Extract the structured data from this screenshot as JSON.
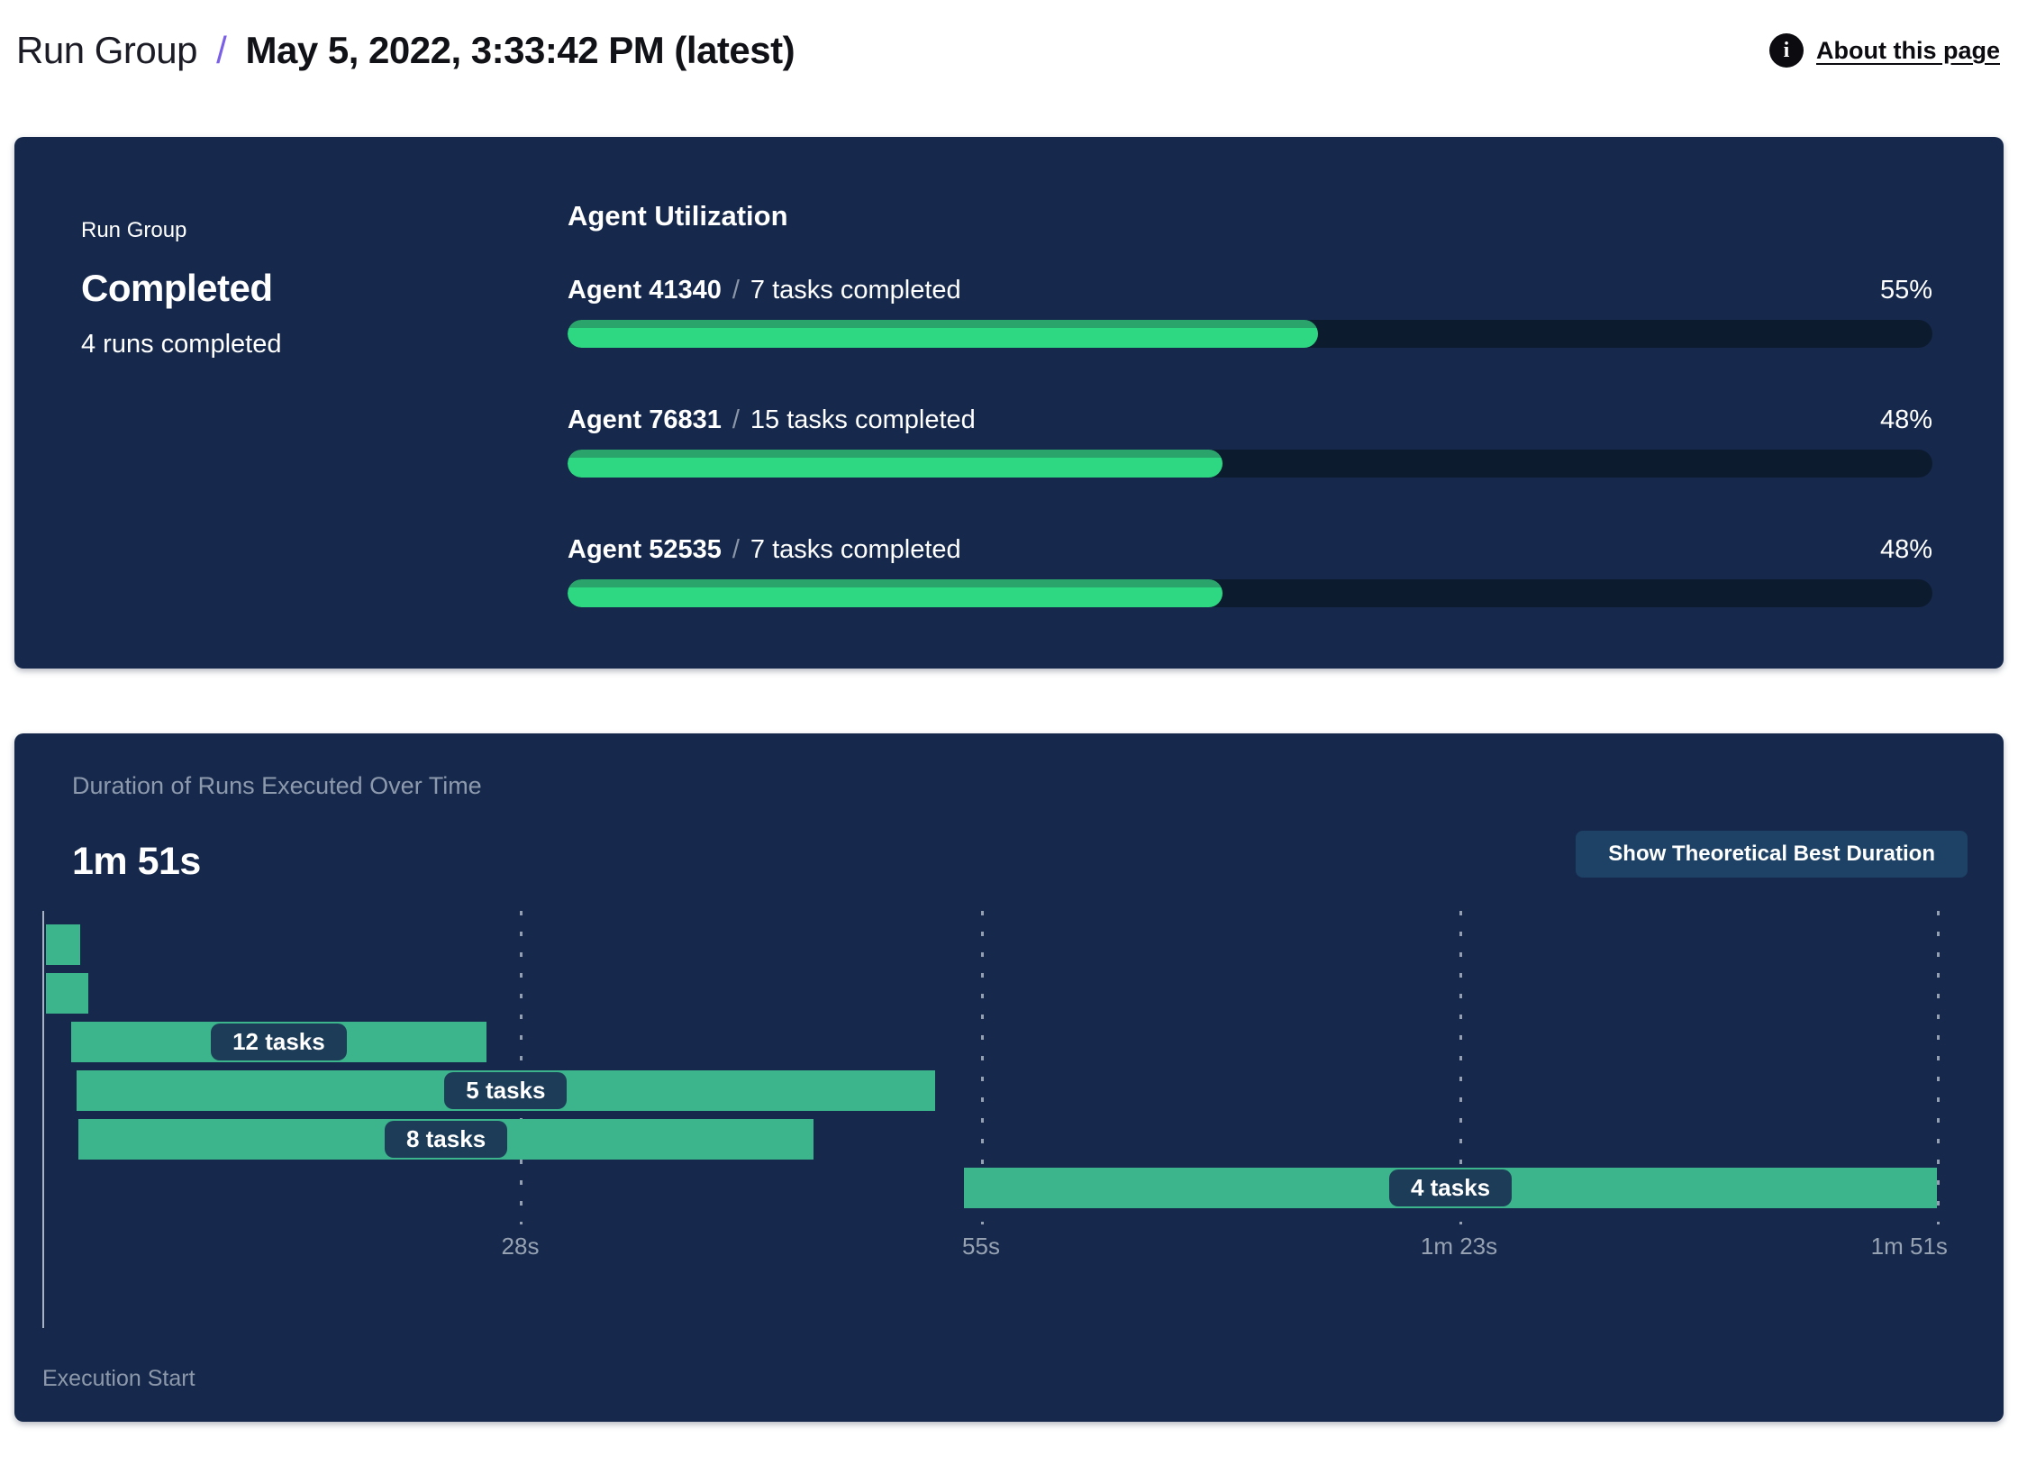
{
  "header": {
    "breadcrumb": "Run Group",
    "separator": "/",
    "title": "May 5, 2022, 3:33:42 PM (latest)",
    "info_glyph": "i",
    "about_label": "About this page"
  },
  "summary": {
    "label": "Run Group",
    "status": "Completed",
    "runs": "4 runs completed",
    "utilization_title": "Agent Utilization",
    "slash": "/",
    "agents": [
      {
        "name": "Agent 41340",
        "tasks": "7 tasks completed",
        "percent": "55%",
        "value": 55
      },
      {
        "name": "Agent 76831",
        "tasks": "15 tasks completed",
        "percent": "48%",
        "value": 48
      },
      {
        "name": "Agent 52535",
        "tasks": "7 tasks completed",
        "percent": "48%",
        "value": 48
      }
    ]
  },
  "duration_panel": {
    "title": "Duration of Runs Executed Over Time",
    "total_duration": "1m 51s",
    "button_label": "Show Theoretical Best Duration",
    "execution_start_label": "Execution Start"
  },
  "chart_data": {
    "type": "bar",
    "variant": "gantt",
    "title": "Duration of Runs Executed Over Time",
    "total_duration_label": "1m 51s",
    "xlabel": "Execution Start",
    "xlim_seconds": [
      0,
      111
    ],
    "grid": "dashed-vertical",
    "ticks": [
      {
        "label": "28s",
        "seconds": 28
      },
      {
        "label": "55s",
        "seconds": 55
      },
      {
        "label": "1m 23s",
        "seconds": 83
      },
      {
        "label": "1m 51s",
        "seconds": 111
      }
    ],
    "bars": [
      {
        "label": "",
        "tasks": null,
        "start_s": 0.2,
        "end_s": 2.2
      },
      {
        "label": "",
        "tasks": null,
        "start_s": 0.2,
        "end_s": 2.7
      },
      {
        "label": "12 tasks",
        "tasks": 12,
        "start_s": 1.7,
        "end_s": 26.0
      },
      {
        "label": "5 tasks",
        "tasks": 5,
        "start_s": 2.0,
        "end_s": 52.3
      },
      {
        "label": "8 tasks",
        "tasks": 8,
        "start_s": 2.1,
        "end_s": 45.2
      },
      {
        "label": "4 tasks",
        "tasks": 4,
        "start_s": 54.0,
        "end_s": 111.0
      }
    ]
  },
  "colors": {
    "panel_navy": "#16294c",
    "progress_track": "#0d1b2f",
    "progress_green": "#2ed882",
    "progress_green_dark": "#2aa46b",
    "gantt_green": "#3cb48c",
    "pill_navy": "#1d3c58",
    "button_navy": "#1d4265",
    "muted_text": "#8d99ad",
    "breadcrumb_slash": "#7a5fe7"
  }
}
